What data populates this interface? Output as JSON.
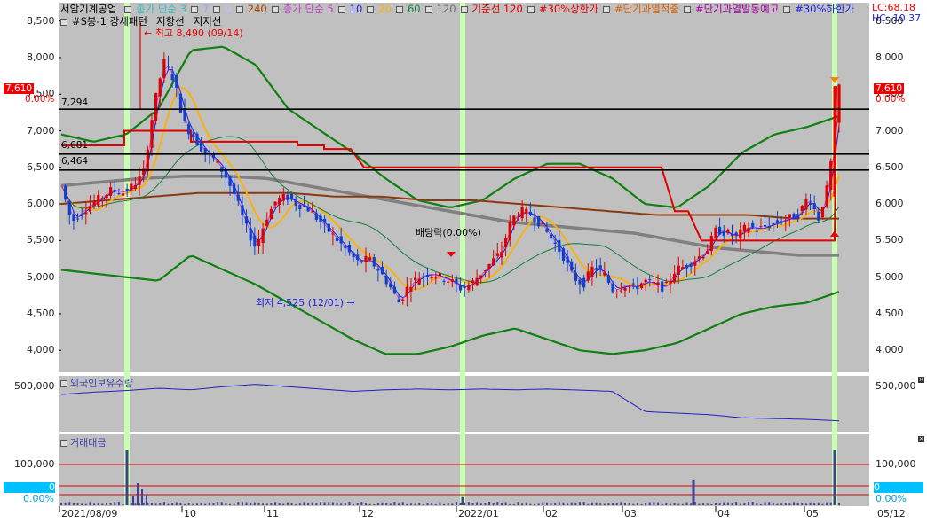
{
  "header": {
    "stock_name": "서암기계공업",
    "legend_row1": [
      {
        "text": "종가 단순 3",
        "color": "#30c0c0"
      },
      {
        "text": "7",
        "color": "#a0a0ff"
      },
      {
        "text": "9",
        "color": "#c0c0ff"
      },
      {
        "text": "240",
        "color": "#a04000"
      },
      {
        "text": "종가 단순 5",
        "color": "#c040c0"
      },
      {
        "text": "10",
        "color": "#2020e0"
      },
      {
        "text": "20",
        "color": "#ffb000"
      },
      {
        "text": "60",
        "color": "#108040"
      },
      {
        "text": "120",
        "color": "#707070"
      },
      {
        "text": "기준선 120",
        "color": "#e00000"
      },
      {
        "text": "#30%상한가",
        "color": "#e00000"
      },
      {
        "text": "#단기과열적출",
        "color": "#e06000"
      },
      {
        "text": "#단기과열발동예고",
        "color": "#a000a0"
      },
      {
        "text": "#30%하한가",
        "color": "#2020e0"
      }
    ],
    "legend_row2": [
      {
        "text": "#S봉-1 강세패턴",
        "color": "#000000"
      },
      {
        "text": "저항선",
        "color": "#000000"
      },
      {
        "text": "지지선",
        "color": "#000000"
      }
    ],
    "lc": "LC:68.18",
    "hc": "HC:-10.37"
  },
  "price_panel": {
    "current_price": "7,610",
    "current_pct": "0.00%",
    "y_ticks": [
      "8,500",
      "8,000",
      "7,500",
      "7,000",
      "6,500",
      "6,000",
      "5,500",
      "5,000",
      "4,500",
      "4,000"
    ],
    "levels": [
      "7,294",
      "6,681",
      "6,464"
    ],
    "high_annotation": "최고 8,490 (09/14)",
    "low_annotation": "최저 4,525 (12/01)",
    "dividend_annotation": "배당락(0.00%)"
  },
  "foreign_panel": {
    "title": "외국인보유수량",
    "y_tick": "500,000"
  },
  "volume_panel": {
    "title": "거래대금",
    "y_tick": "100,000",
    "zero_label": "0",
    "zero_pct": "0.00%"
  },
  "x_axis": [
    "2021/08/09",
    "10",
    "11",
    "12",
    "2022/01",
    "02",
    "03",
    "04",
    "05",
    "05/12"
  ],
  "colors": {
    "bg": "#c0c0c0",
    "up": "#e00000",
    "down": "#1040d0",
    "highlight": "#c8ffb0"
  },
  "chart_data": {
    "type": "candlestick",
    "title": "서암기계공업",
    "period": "2021/08/09 - 2022/05/12",
    "ylim": [
      3700,
      8750
    ],
    "price_high": {
      "value": 8490,
      "date": "09/14"
    },
    "price_low": {
      "value": 4525,
      "date": "12/01"
    },
    "last_close": 7610,
    "horizontal_levels": [
      7294,
      6681,
      6464
    ],
    "approx_close_series": [
      6250,
      5750,
      5900,
      6000,
      6100,
      6200,
      6150,
      6250,
      6400,
      7300,
      7950,
      7700,
      7100,
      6900,
      6700,
      6600,
      6400,
      6100,
      5700,
      5400,
      5800,
      6050,
      6100,
      6000,
      5950,
      5800,
      5650,
      5500,
      5350,
      5200,
      5250,
      5100,
      4900,
      4650,
      4900,
      5000,
      5050,
      5000,
      4950,
      4850,
      4900,
      5050,
      5200,
      5350,
      5800,
      5900,
      5850,
      5700,
      5500,
      5300,
      5000,
      4900,
      5150,
      5050,
      4800,
      4900,
      4850,
      4950,
      4900,
      4850,
      5100,
      5150,
      5250,
      5350,
      5650,
      5600,
      5550,
      5700,
      5650,
      5700,
      5750,
      5800,
      5850,
      6100,
      5800,
      6300,
      7610
    ],
    "foreign_holding_approx": [
      440000,
      455000,
      465000,
      480000,
      470000,
      490000,
      505000,
      490000,
      475000,
      460000,
      470000,
      475000,
      470000,
      475000,
      470000,
      475000,
      468000,
      460000,
      330000,
      320000,
      310000,
      290000,
      285000,
      280000,
      270000
    ],
    "volume_spikes": [
      {
        "date": "2021/09/14",
        "relative": 1.0
      },
      {
        "date": "2021/12/30",
        "relative": 0.15
      },
      {
        "date": "2022/03/29",
        "relative": 0.45
      },
      {
        "date": "2022/05/12",
        "relative": 1.0
      }
    ]
  }
}
